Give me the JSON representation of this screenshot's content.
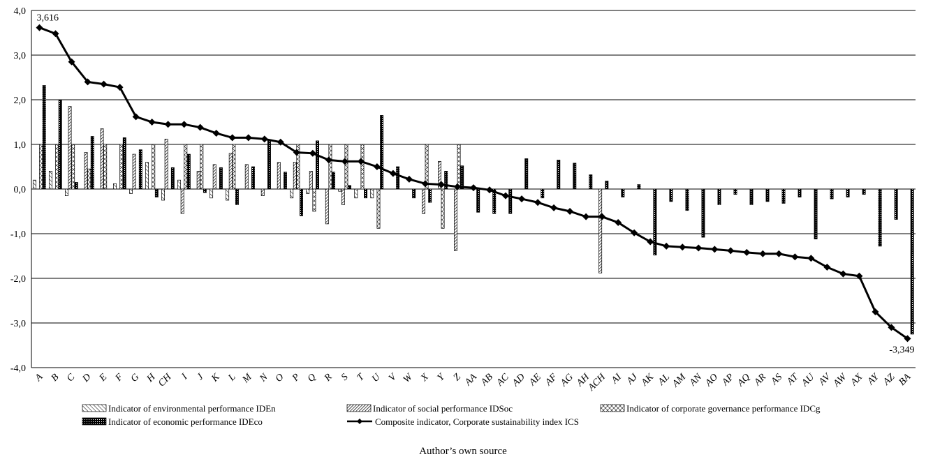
{
  "chart_data": {
    "type": "bar",
    "ylim": [
      -4,
      4
    ],
    "yticks": [
      4,
      3,
      2,
      1,
      0,
      -1,
      -2,
      -3,
      -4
    ],
    "ytick_labels": [
      "4,0",
      "3,0",
      "2,0",
      "1,0",
      "0,0",
      "-1,0",
      "-2,0",
      "-3,0",
      "-4,0"
    ],
    "grid": true,
    "legend_position": "bottom",
    "categories": [
      "A",
      "B",
      "C",
      "D",
      "E",
      "F",
      "G",
      "H",
      "CH",
      "I",
      "J",
      "K",
      "L",
      "M",
      "N",
      "O",
      "P",
      "Q",
      "R",
      "S",
      "T",
      "U",
      "V",
      "W",
      "X",
      "Y",
      "Z",
      "AA",
      "AB",
      "AC",
      "AD",
      "AE",
      "AF",
      "AG",
      "AH",
      "ACH",
      "AI",
      "AJ",
      "AK",
      "AL",
      "AM",
      "AN",
      "AO",
      "AP",
      "AQ",
      "AR",
      "AS",
      "AT",
      "AU",
      "AV",
      "AW",
      "AX",
      "AY",
      "AZ",
      "BA"
    ],
    "series": [
      {
        "name": "Indicator of environmental performance IDEn",
        "pattern": "hatch-env",
        "values": [
          0.2,
          0.4,
          -0.15,
          0.0,
          0.0,
          0.12,
          -0.1,
          0.6,
          -0.25,
          0.2,
          0.0,
          -0.2,
          -0.25,
          0.0,
          0.0,
          0.0,
          -0.2,
          -0.1,
          0.0,
          -0.05,
          -0.2,
          -0.2,
          0.0,
          0.0,
          0.0,
          0.0,
          0.0,
          0.0,
          0.0,
          0.0,
          0.0,
          0.0,
          0.0,
          0.0,
          0.0,
          0.0,
          0.0,
          0.0,
          0.0,
          0.0,
          0.0,
          0.0,
          0.0,
          0.0,
          0.0,
          0.0,
          0.0,
          0.0,
          0.0,
          0.0,
          0.0,
          0.0,
          0.0,
          0.0,
          0.0
        ]
      },
      {
        "name": "Indicator of social performance IDSoc",
        "pattern": "hatch-soc",
        "values": [
          0.0,
          0.0,
          1.85,
          0.82,
          1.35,
          0.0,
          0.78,
          0.0,
          1.12,
          -0.55,
          0.4,
          0.55,
          0.8,
          0.55,
          -0.15,
          0.6,
          0.6,
          0.4,
          -0.78,
          -0.35,
          0.0,
          0.0,
          0.0,
          0.0,
          -0.55,
          0.62,
          -1.38,
          0.0,
          0.0,
          0.0,
          0.0,
          0.0,
          0.0,
          0.0,
          0.0,
          -1.88,
          0.0,
          0.0,
          0.0,
          0.0,
          0.0,
          0.0,
          0.0,
          0.0,
          0.0,
          0.0,
          0.0,
          0.0,
          0.0,
          0.0,
          0.0,
          0.0,
          0.0,
          0.0,
          0.0
        ]
      },
      {
        "name": "Indicator of corporate governance performance IDCg",
        "pattern": "hatch-cg",
        "values": [
          1.0,
          1.0,
          1.0,
          0.45,
          1.0,
          1.0,
          0.0,
          1.0,
          0.0,
          1.0,
          1.0,
          0.0,
          1.0,
          0.0,
          0.0,
          0.0,
          1.0,
          -0.5,
          1.0,
          1.0,
          1.0,
          -0.88,
          0.0,
          0.0,
          1.0,
          -0.88,
          1.0,
          0.0,
          0.0,
          0.0,
          0.0,
          0.0,
          0.0,
          0.0,
          0.0,
          0.0,
          0.0,
          0.0,
          0.0,
          0.0,
          0.0,
          0.0,
          0.0,
          0.0,
          0.0,
          0.0,
          0.0,
          0.0,
          0.0,
          0.0,
          0.0,
          0.0,
          0.0,
          0.0,
          0.0
        ]
      },
      {
        "name": "Indicator of economic performance IDEco",
        "pattern": "dots",
        "values": [
          2.32,
          2.0,
          0.15,
          1.18,
          0.0,
          1.15,
          0.88,
          -0.18,
          0.48,
          0.78,
          -0.08,
          0.48,
          -0.35,
          0.5,
          1.1,
          0.38,
          -0.6,
          1.08,
          0.38,
          0.08,
          -0.2,
          1.65,
          0.5,
          -0.2,
          -0.3,
          0.4,
          0.52,
          -0.52,
          -0.55,
          -0.55,
          0.68,
          -0.2,
          0.65,
          0.58,
          0.32,
          0.18,
          -0.18,
          0.1,
          -1.48,
          -0.28,
          -0.48,
          -1.08,
          -0.35,
          -0.12,
          -0.35,
          -0.28,
          -0.32,
          -0.18,
          -1.12,
          -0.22,
          -0.18,
          -0.12,
          -1.28,
          -0.68,
          -3.25
        ]
      },
      {
        "name": "Composite indicator, Corporate sustainability index ICS",
        "type": "line",
        "values": [
          3.616,
          3.48,
          2.85,
          2.4,
          2.35,
          2.28,
          1.62,
          1.5,
          1.45,
          1.45,
          1.38,
          1.25,
          1.15,
          1.15,
          1.12,
          1.05,
          0.82,
          0.8,
          0.65,
          0.62,
          0.62,
          0.5,
          0.35,
          0.22,
          0.12,
          0.1,
          0.05,
          0.03,
          -0.02,
          -0.15,
          -0.22,
          -0.3,
          -0.42,
          -0.5,
          -0.62,
          -0.62,
          -0.75,
          -0.98,
          -1.18,
          -1.28,
          -1.3,
          -1.32,
          -1.35,
          -1.38,
          -1.42,
          -1.45,
          -1.45,
          -1.52,
          -1.55,
          -1.75,
          -1.9,
          -1.95,
          -2.75,
          -3.1,
          -3.349
        ]
      }
    ],
    "data_labels": [
      {
        "category": "A",
        "text": "3,616"
      },
      {
        "category": "BA",
        "text": "-3,349"
      }
    ]
  },
  "source": "Author’s own source"
}
